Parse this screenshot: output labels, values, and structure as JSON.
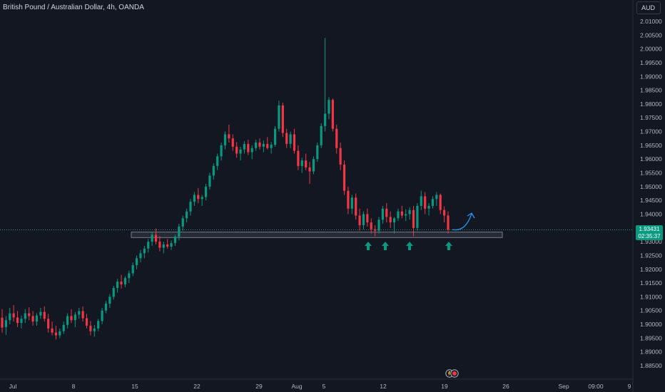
{
  "header": {
    "title": "British Pound / Australian Dollar, 4h, OANDA",
    "currency": "AUD"
  },
  "price_label": {
    "value": "1.93431",
    "countdown": "02:35:37"
  },
  "colors": {
    "background": "#131722",
    "up": "#089981",
    "down": "#f23645",
    "zone": "#2a2e39",
    "arrow": "#089981",
    "projection": "#2196f3",
    "grid": "#1e222d"
  },
  "icons": [
    "arrow-up-icon",
    "curved-arrow-icon",
    "news-event-icon"
  ],
  "chart_data": {
    "type": "candlestick",
    "title": "British Pound / Australian Dollar, 4h, OANDA",
    "y_axis": {
      "range": [
        1.8825,
        2.0125
      ],
      "ticks": [
        "2.01000",
        "2.00500",
        "2.00000",
        "1.99500",
        "1.99000",
        "1.98500",
        "1.98000",
        "1.97500",
        "1.97000",
        "1.96500",
        "1.96000",
        "1.95500",
        "1.95000",
        "1.94500",
        "1.94000",
        "1.93500",
        "1.93000",
        "1.92500",
        "1.92000",
        "1.91500",
        "1.91000",
        "1.90500",
        "1.90000",
        "1.89500",
        "1.89000",
        "1.88500"
      ],
      "unit": "AUD"
    },
    "x_axis": {
      "ticks": [
        "Jul",
        "8",
        "15",
        "22",
        "29",
        "Aug",
        "5",
        "12",
        "19",
        "26",
        "Sep",
        "09:00",
        "9"
      ]
    },
    "last_price": 1.93431,
    "support_zone": [
      1.9315,
      1.9335
    ],
    "bounce_arrows": [
      "Aug 9",
      "Aug 12",
      "Aug 15",
      "Aug 19"
    ],
    "ohlc": [
      [
        1.9024,
        1.9055,
        1.897,
        1.8988
      ],
      [
        1.899,
        1.903,
        1.8962,
        1.9015
      ],
      [
        1.9015,
        1.906,
        1.9,
        1.904
      ],
      [
        1.904,
        1.907,
        1.901,
        1.9025
      ],
      [
        1.9025,
        1.9048,
        1.899,
        1.9005
      ],
      [
        1.9005,
        1.9032,
        1.8985,
        1.902
      ],
      [
        1.902,
        1.9055,
        1.9005,
        1.904
      ],
      [
        1.904,
        1.9062,
        1.9015,
        1.903
      ],
      [
        1.903,
        1.9048,
        1.8995,
        1.901
      ],
      [
        1.901,
        1.904,
        1.8995,
        1.9032
      ],
      [
        1.9032,
        1.906,
        1.902,
        1.9045
      ],
      [
        1.9045,
        1.9065,
        1.901,
        1.902
      ],
      [
        1.902,
        1.9038,
        1.897,
        1.8985
      ],
      [
        1.8985,
        1.901,
        1.896,
        1.897
      ],
      [
        1.897,
        1.8995,
        1.8945,
        1.896
      ],
      [
        1.896,
        1.8985,
        1.895,
        1.8975
      ],
      [
        1.8975,
        1.901,
        1.8965,
        1.8998
      ],
      [
        1.8998,
        1.904,
        1.8985,
        1.903
      ],
      [
        1.903,
        1.9055,
        1.9005,
        1.9015
      ],
      [
        1.9015,
        1.9045,
        1.899,
        1.9035
      ],
      [
        1.9035,
        1.906,
        1.902,
        1.9048
      ],
      [
        1.9048,
        1.9065,
        1.901,
        1.9022
      ],
      [
        1.9022,
        1.9038,
        1.8985,
        1.8995
      ],
      [
        1.8995,
        1.9012,
        1.896,
        1.8975
      ],
      [
        1.8975,
        1.8998,
        1.8955,
        1.8985
      ],
      [
        1.8985,
        1.902,
        1.8975,
        1.9012
      ],
      [
        1.9012,
        1.906,
        1.9,
        1.905
      ],
      [
        1.905,
        1.9085,
        1.904,
        1.9075
      ],
      [
        1.9075,
        1.911,
        1.906,
        1.91
      ],
      [
        1.91,
        1.914,
        1.909,
        1.9132
      ],
      [
        1.9132,
        1.9165,
        1.9115,
        1.9155
      ],
      [
        1.9155,
        1.918,
        1.913,
        1.9145
      ],
      [
        1.9145,
        1.9175,
        1.9135,
        1.9168
      ],
      [
        1.9168,
        1.9195,
        1.915,
        1.9185
      ],
      [
        1.9185,
        1.9225,
        1.9175,
        1.9215
      ],
      [
        1.9215,
        1.925,
        1.92,
        1.924
      ],
      [
        1.924,
        1.927,
        1.9225,
        1.9258
      ],
      [
        1.9258,
        1.9285,
        1.924,
        1.9275
      ],
      [
        1.9275,
        1.931,
        1.926,
        1.93
      ],
      [
        1.93,
        1.9335,
        1.9285,
        1.9325
      ],
      [
        1.9325,
        1.9348,
        1.929,
        1.93
      ],
      [
        1.93,
        1.932,
        1.9265,
        1.9278
      ],
      [
        1.9278,
        1.93,
        1.9258,
        1.929
      ],
      [
        1.929,
        1.931,
        1.9275,
        1.9282
      ],
      [
        1.9282,
        1.9305,
        1.927,
        1.9295
      ],
      [
        1.9295,
        1.9325,
        1.9285,
        1.9318
      ],
      [
        1.9318,
        1.9365,
        1.9305,
        1.9355
      ],
      [
        1.9355,
        1.9395,
        1.934,
        1.9385
      ],
      [
        1.9385,
        1.942,
        1.937,
        1.941
      ],
      [
        1.941,
        1.9455,
        1.9395,
        1.9445
      ],
      [
        1.9445,
        1.948,
        1.943,
        1.947
      ],
      [
        1.947,
        1.9495,
        1.944,
        1.9455
      ],
      [
        1.9455,
        1.947,
        1.943,
        1.9462
      ],
      [
        1.9462,
        1.951,
        1.945,
        1.95
      ],
      [
        1.95,
        1.955,
        1.949,
        1.954
      ],
      [
        1.954,
        1.9585,
        1.9525,
        1.9575
      ],
      [
        1.9575,
        1.962,
        1.956,
        1.961
      ],
      [
        1.961,
        1.966,
        1.9595,
        1.965
      ],
      [
        1.965,
        1.97,
        1.9635,
        1.969
      ],
      [
        1.969,
        1.9725,
        1.966,
        1.9675
      ],
      [
        1.9675,
        1.969,
        1.963,
        1.9645
      ],
      [
        1.9645,
        1.9662,
        1.9605,
        1.962
      ],
      [
        1.962,
        1.9645,
        1.9595,
        1.9635
      ],
      [
        1.9635,
        1.9665,
        1.962,
        1.9655
      ],
      [
        1.9655,
        1.967,
        1.9615,
        1.9625
      ],
      [
        1.9625,
        1.965,
        1.96,
        1.964
      ],
      [
        1.964,
        1.967,
        1.963,
        1.966
      ],
      [
        1.966,
        1.9675,
        1.9635,
        1.9645
      ],
      [
        1.9645,
        1.9668,
        1.9625,
        1.9655
      ],
      [
        1.9655,
        1.968,
        1.9635,
        1.964
      ],
      [
        1.964,
        1.9662,
        1.962,
        1.9652
      ],
      [
        1.9652,
        1.972,
        1.9645,
        1.971
      ],
      [
        1.971,
        1.9812,
        1.97,
        1.9795
      ],
      [
        1.9795,
        1.9805,
        1.968,
        1.9695
      ],
      [
        1.9695,
        1.971,
        1.964,
        1.9655
      ],
      [
        1.9655,
        1.97,
        1.964,
        1.969
      ],
      [
        1.969,
        1.971,
        1.962,
        1.963
      ],
      [
        1.963,
        1.965,
        1.956,
        1.9575
      ],
      [
        1.9575,
        1.9605,
        1.955,
        1.9595
      ],
      [
        1.9595,
        1.962,
        1.956,
        1.957
      ],
      [
        1.957,
        1.959,
        1.951,
        1.9555
      ],
      [
        1.9555,
        1.961,
        1.9545,
        1.96
      ],
      [
        1.96,
        1.966,
        1.959,
        1.965
      ],
      [
        1.965,
        1.973,
        1.964,
        1.972
      ],
      [
        1.972,
        2.004,
        1.97,
        1.9765
      ],
      [
        1.9765,
        1.9825,
        1.9745,
        1.9815
      ],
      [
        1.9815,
        1.982,
        1.97,
        1.971
      ],
      [
        1.971,
        1.9725,
        1.962,
        1.964
      ],
      [
        1.964,
        1.966,
        1.956,
        1.958
      ],
      [
        1.958,
        1.9595,
        1.947,
        1.9485
      ],
      [
        1.9485,
        1.95,
        1.94,
        1.942
      ],
      [
        1.942,
        1.947,
        1.94,
        1.946
      ],
      [
        1.946,
        1.9475,
        1.938,
        1.9395
      ],
      [
        1.9395,
        1.942,
        1.934,
        1.936
      ],
      [
        1.936,
        1.941,
        1.9345,
        1.94
      ],
      [
        1.94,
        1.942,
        1.9355,
        1.937
      ],
      [
        1.937,
        1.9385,
        1.933,
        1.9345
      ],
      [
        1.9345,
        1.936,
        1.932,
        1.934
      ],
      [
        1.934,
        1.939,
        1.933,
        1.938
      ],
      [
        1.938,
        1.943,
        1.9365,
        1.942
      ],
      [
        1.942,
        1.944,
        1.937,
        1.939
      ],
      [
        1.939,
        1.941,
        1.935,
        1.937
      ],
      [
        1.937,
        1.939,
        1.933,
        1.9385
      ],
      [
        1.9385,
        1.942,
        1.9375,
        1.941
      ],
      [
        1.941,
        1.943,
        1.9385,
        1.9395
      ],
      [
        1.9395,
        1.9418,
        1.9375,
        1.94
      ],
      [
        1.94,
        1.9425,
        1.938,
        1.9415
      ],
      [
        1.9415,
        1.943,
        1.932,
        1.935
      ],
      [
        1.935,
        1.944,
        1.934,
        1.943
      ],
      [
        1.943,
        1.9485,
        1.9415,
        1.9465
      ],
      [
        1.9465,
        1.948,
        1.94,
        1.942
      ],
      [
        1.942,
        1.944,
        1.9395,
        1.943
      ],
      [
        1.943,
        1.9465,
        1.942,
        1.9455
      ],
      [
        1.9455,
        1.948,
        1.943,
        1.947
      ],
      [
        1.947,
        1.9475,
        1.94,
        1.9415
      ],
      [
        1.9415,
        1.9428,
        1.937,
        1.9395
      ],
      [
        1.9395,
        1.941,
        1.933,
        1.9343
      ]
    ]
  }
}
